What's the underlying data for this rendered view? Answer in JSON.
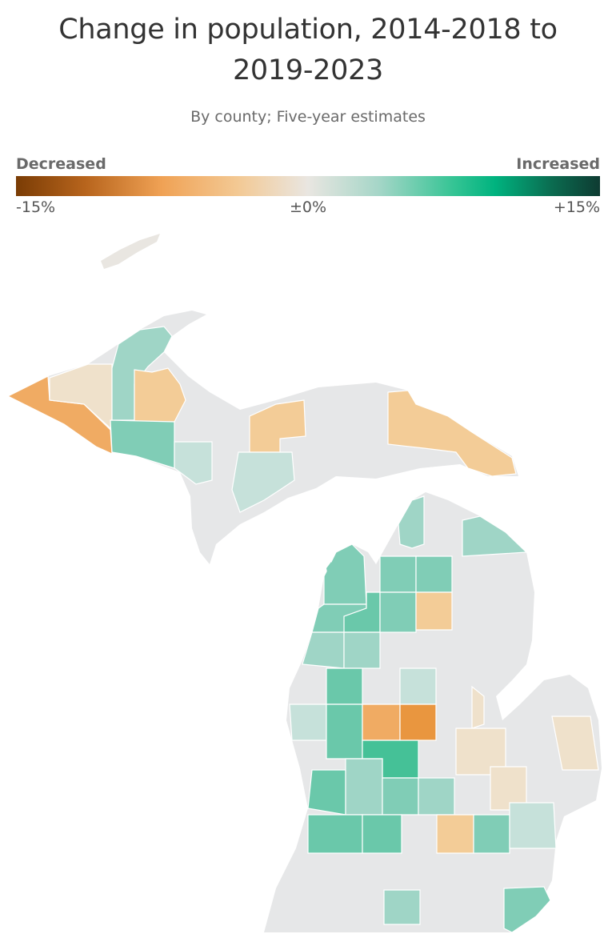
{
  "header": {
    "title": "Change in population, 2014-2018 to 2019-2023",
    "subtitle": "By county; Five-year estimates"
  },
  "legend": {
    "low_label": "Decreased",
    "high_label": "Increased",
    "tick_min": "-15%",
    "tick_mid": "±0%",
    "tick_max": "+15%",
    "scale_colors": [
      "#7a3c05",
      "#f0a255",
      "#e9e6e1",
      "#34c494",
      "#0e3b32"
    ]
  },
  "colors": {
    "no_data_gray": "#e6e7e8",
    "strong_decline": "#e9963f",
    "moderate_decline": "#f0ab63",
    "mild_decline": "#f3cc97",
    "slight_decline": "#efe1cb",
    "neutral": "#ecebea",
    "slight_increase": "#c6e1da",
    "mild_increase": "#9fd5c6",
    "moderate_increase": "#80cdb6",
    "strong_increase": "#6ac8aa",
    "strongest_increase": "#45c197"
  }
}
